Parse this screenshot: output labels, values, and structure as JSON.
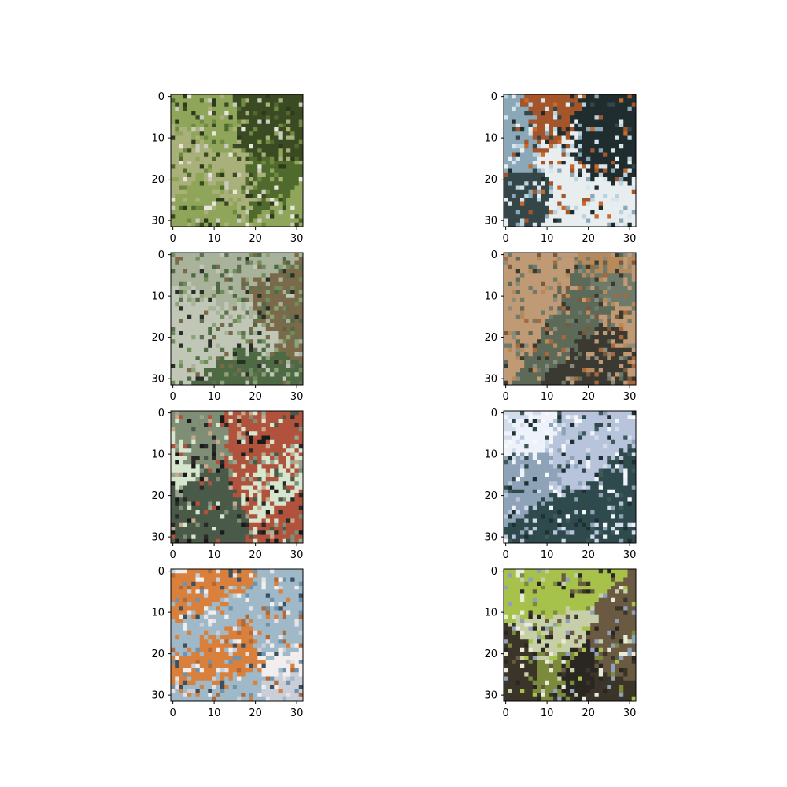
{
  "figure": {
    "rows": 4,
    "cols": 2,
    "panels": [
      {
        "subject": "small dog in green grass",
        "palette": [
          "#4f6a2c",
          "#6f8a40",
          "#8fa65a",
          "#c9cbbe",
          "#e8e6dc",
          "#3a4a22",
          "#a9b07a",
          "#2e3a1e"
        ]
      },
      {
        "subject": "orange and black animal against pale blue sky",
        "palette": [
          "#b9d3df",
          "#d7e6ec",
          "#a5552a",
          "#c56a2a",
          "#1f2d2e",
          "#354648",
          "#e8eef0",
          "#8aa8b8"
        ]
      },
      {
        "subject": "grey animal in green foliage",
        "palette": [
          "#6f8d5a",
          "#8aa473",
          "#a9b29a",
          "#2a2f28",
          "#5e6f52",
          "#c1c7b6",
          "#4e6a44",
          "#7a6a4a"
        ]
      },
      {
        "subject": "brown animal with orange background",
        "palette": [
          "#7a5a3e",
          "#a8683c",
          "#5d6a58",
          "#8b8b7c",
          "#3a3a32",
          "#b88a5a",
          "#6e7a6a",
          "#c09a74"
        ]
      },
      {
        "subject": "black and white dog with red backdrop",
        "palette": [
          "#b0523c",
          "#2a2a2a",
          "#d7e6cf",
          "#7f8e75",
          "#4a5a48",
          "#c6a98a",
          "#1a1a1a",
          "#9aa48e"
        ]
      },
      {
        "subject": "dark animal against white sky",
        "palette": [
          "#eef2fa",
          "#d3dced",
          "#2e4a4c",
          "#3c5a5a",
          "#b8c4dc",
          "#1d3134",
          "#8fa3b8",
          "#f7f8fc"
        ]
      },
      {
        "subject": "white and orange cat on blue background",
        "palette": [
          "#6f93ad",
          "#9fb9c9",
          "#f2eeee",
          "#d9813c",
          "#c9ced8",
          "#3d5060",
          "#e7e2e6",
          "#b06a3a"
        ]
      },
      {
        "subject": "tabby animal with bright green leaves",
        "palette": [
          "#a6c24a",
          "#7c8a3e",
          "#3b3428",
          "#c7cfa8",
          "#e8ecd6",
          "#6b5a42",
          "#8fa0b8",
          "#2a2622"
        ]
      }
    ],
    "axes": {
      "ticks": [
        "0",
        "10",
        "20",
        "30"
      ],
      "ylim": [
        31.5,
        -0.5
      ],
      "xlim": [
        -0.5,
        31.5
      ]
    }
  }
}
